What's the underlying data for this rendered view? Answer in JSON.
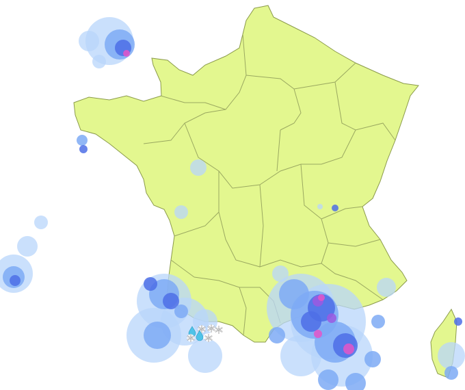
{
  "map": {
    "land_color": "#e3f78f",
    "border_color": "#8a9a4a",
    "sea_color": "#ffffff"
  },
  "radar": {
    "colors": {
      "light": "#b8d6fb",
      "medium": "#7eaaf5",
      "heavy": "#4d6fe6",
      "very_heavy": "#9b59e0",
      "extreme": "#e455c8"
    }
  },
  "weather_icons": [
    {
      "type": "rain-drop-icon"
    },
    {
      "type": "snowflake-icon"
    },
    {
      "type": "rain-drop-icon"
    },
    {
      "type": "snowflake-icon"
    },
    {
      "type": "snowflake-icon"
    },
    {
      "type": "snowflake-icon"
    },
    {
      "type": "snowflake-icon"
    }
  ]
}
